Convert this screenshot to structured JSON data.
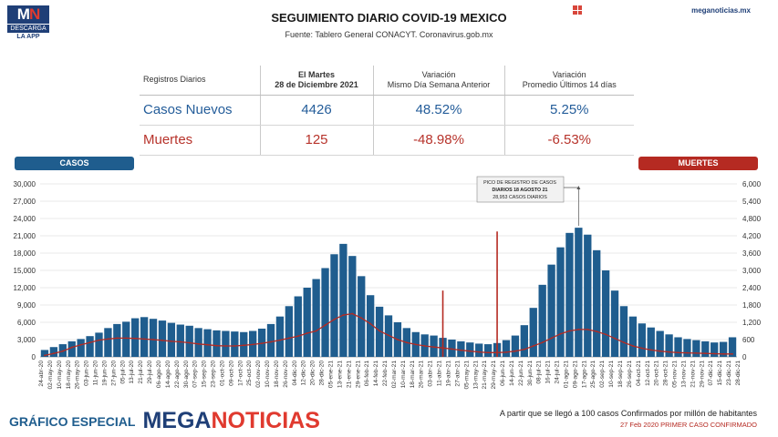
{
  "logo": {
    "mn_left": "M",
    "mn_right": "N",
    "line1": "DESCARGA",
    "line2": "LA APP"
  },
  "header": {
    "title": "SEGUIMIENTO DIARIO COVID-19 MEXICO",
    "source": "Fuente: Tablero General CONACYT. Coronavirus.gob.mx",
    "site": "meganoticias.mx"
  },
  "table": {
    "headers": [
      "Registros Diarios",
      "El Martes\n28 de Diciembre 2021",
      "Variación\nMismo Día Semana Anterior",
      "Variación\nPromedio Últimos 14 días"
    ],
    "rows": [
      {
        "label": "Casos Nuevos",
        "value": "4426",
        "var_week": "48.52%",
        "var_14": "5.25%"
      },
      {
        "label": "Muertes",
        "value": "125",
        "var_week": "-48.98%",
        "var_14": "-6.53%"
      }
    ]
  },
  "pills": {
    "casos": "CASOS",
    "muertes": "MUERTES"
  },
  "annotation": "PICO DE REGISTRO DE CASOS\nDIARIOS 18 AGOSTO 21\n28,953 CASOS DIARIOS",
  "chart_data": {
    "type": "bar",
    "left_axis": {
      "label": "CASOS",
      "ylim": [
        0,
        30000
      ],
      "ticks": [
        "0",
        "3,000",
        "6,000",
        "9,000",
        "12,000",
        "15,000",
        "18,000",
        "21,000",
        "24,000",
        "27,000",
        "30,000"
      ]
    },
    "right_axis": {
      "label": "MUERTES",
      "ylim": [
        0,
        6000
      ],
      "ticks": [
        "0",
        "600",
        "1,200",
        "1,800",
        "2,400",
        "3,000",
        "3,600",
        "4,200",
        "4,800",
        "5,400",
        "6,000"
      ]
    },
    "x_dates": [
      "24-abr-20",
      "02-may-20",
      "10-may-20",
      "18-may-20",
      "26-may-20",
      "03-jun-20",
      "11-jun-20",
      "19-jun-20",
      "27-jun-20",
      "05-jul-20",
      "13-jul-20",
      "21-jul-20",
      "29-jul-20",
      "06-ago-20",
      "14-ago-20",
      "22-ago-20",
      "30-ago-20",
      "07-sep-20",
      "15-sep-20",
      "23-sep-20",
      "01-oct-20",
      "09-oct-20",
      "17-oct-20",
      "25-oct-20",
      "02-nov-20",
      "10-nov-20",
      "18-nov-20",
      "26-nov-20",
      "04-dic-20",
      "12-dic-20",
      "20-dic-20",
      "28-dic-20",
      "05-ene-21",
      "13-ene-21",
      "21-ene-21",
      "29-ene-21",
      "06-feb-21",
      "14-feb-21",
      "22-feb-21",
      "02-mar-21",
      "10-mar-21",
      "18-mar-21",
      "26-mar-21",
      "03-abr-21",
      "11-abr-21",
      "19-abr-21",
      "27-abr-21",
      "05-may-21",
      "13-may-21",
      "21-may-21",
      "29-may-21",
      "06-jun-21",
      "14-jun-21",
      "22-jun-21",
      "30-jun-21",
      "08-jul-21",
      "16-jul-21",
      "24-jul-21",
      "01-ago-21",
      "09-ago-21",
      "17-ago-21",
      "25-ago-21",
      "02-sep-21",
      "10-sep-21",
      "18-sep-21",
      "26-sep-21",
      "04-oct-21",
      "12-oct-21",
      "20-oct-21",
      "28-oct-21",
      "05-nov-21",
      "13-nov-21",
      "21-nov-21",
      "29-nov-21",
      "07-dic-21",
      "15-dic-21",
      "23-dic-21"
    ],
    "x_labels": [
      "24-abr-20",
      "02-may-20",
      "10-may-20",
      "18-may-20",
      "26-may-20",
      "03-jun-20",
      "11-jun-20",
      "19-jun-20",
      "27-jun-20",
      "05-jul-20",
      "13-jul-20",
      "21-jul-20",
      "29-jul-20",
      "06-ago-20",
      "14-ago-20",
      "22-ago-20",
      "30-ago-20",
      "07-sep-20",
      "15-sep-20",
      "23-sep-20",
      "01-oct-20",
      "09-oct-20",
      "17-oct-20",
      "25-oct-20",
      "02-nov-20",
      "10-nov-20",
      "18-nov-20",
      "26-nov-20",
      "04-dic-20",
      "12-dic-20",
      "20-dic-20",
      "28-dic-20",
      "05-ene-21",
      "13-ene-21",
      "21-ene-21",
      "29-ene-21",
      "06-feb-21",
      "14-feb-21",
      "22-feb-21",
      "02-mar-21",
      "10-mar-21",
      "18-mar-21",
      "26-mar-21",
      "03-abr-21",
      "11-abr-21",
      "19-abr-21",
      "27-abr-21",
      "05-may-21",
      "13-may-21",
      "21-may-21",
      "29-may-21",
      "06-jun-21",
      "14-jun-21",
      "22-jun-21",
      "30-jun-21",
      "08-jul-21",
      "16-jul-21",
      "24-jul-21",
      "01-ago-21",
      "09-ago-21",
      "17-ago-21",
      "25-ago-21",
      "02-sep-21",
      "10-sep-21",
      "18-sep-21",
      "26-sep-21",
      "04-oct-21",
      "12-oct-21",
      "20-oct-21",
      "28-oct-21",
      "05-nov-21",
      "13-nov-21",
      "21-nov-21",
      "29-nov-21",
      "07-dic-21",
      "15-dic-21",
      "23-dic-21",
      "28-dic-21"
    ],
    "series": [
      {
        "name": "CASOS",
        "axis": "left",
        "color": "#1f5d8e",
        "values": [
          1200,
          1700,
          2200,
          2700,
          3100,
          3600,
          4200,
          5000,
          5700,
          6100,
          6700,
          6900,
          6600,
          6300,
          5900,
          5600,
          5400,
          5000,
          4800,
          4600,
          4500,
          4400,
          4300,
          4500,
          4900,
          5700,
          7000,
          8800,
          10500,
          12000,
          13500,
          15400,
          17800,
          19600,
          17500,
          14000,
          10700,
          8700,
          7200,
          6000,
          5000,
          4300,
          3900,
          3700,
          3300,
          3000,
          2700,
          2500,
          2300,
          2200,
          2400,
          2900,
          3700,
          5500,
          8500,
          12500,
          16000,
          19000,
          21500,
          22400,
          21200,
          18500,
          15000,
          11500,
          8800,
          7000,
          5800,
          5100,
          4500,
          3900,
          3400,
          3100,
          2900,
          2700,
          2500,
          2600,
          3400
        ]
      },
      {
        "name": "MUERTES",
        "axis": "right",
        "color": "#b52a22",
        "values": [
          50,
          120,
          200,
          330,
          420,
          500,
          580,
          620,
          650,
          650,
          640,
          620,
          600,
          570,
          540,
          520,
          490,
          450,
          420,
          390,
          380,
          380,
          400,
          430,
          470,
          520,
          580,
          650,
          720,
          820,
          900,
          1100,
          1300,
          1450,
          1500,
          1350,
          1150,
          900,
          750,
          600,
          500,
          430,
          380,
          340,
          310,
          270,
          230,
          200,
          170,
          150,
          150,
          160,
          200,
          260,
          380,
          500,
          650,
          800,
          900,
          950,
          950,
          880,
          780,
          640,
          500,
          380,
          300,
          240,
          200,
          170,
          150,
          140,
          130,
          120,
          110,
          100,
          100
        ]
      }
    ],
    "spikes": [
      {
        "date": "29-may-21",
        "series": "MUERTES",
        "value": 4350
      },
      {
        "date": "11-abr-21",
        "series": "MUERTES",
        "value": 2300
      }
    ],
    "grid": true
  },
  "footer": {
    "special": "GRÁFICO ESPECIAL",
    "brand_a": "MEGA",
    "brand_b": "NOTICIAS",
    "note1": "A partir que se llegó a 100 casos Confirmados por millón de habitantes",
    "note2": "27 Feb 2020 PRIMER CASO CONFIRMADO"
  }
}
